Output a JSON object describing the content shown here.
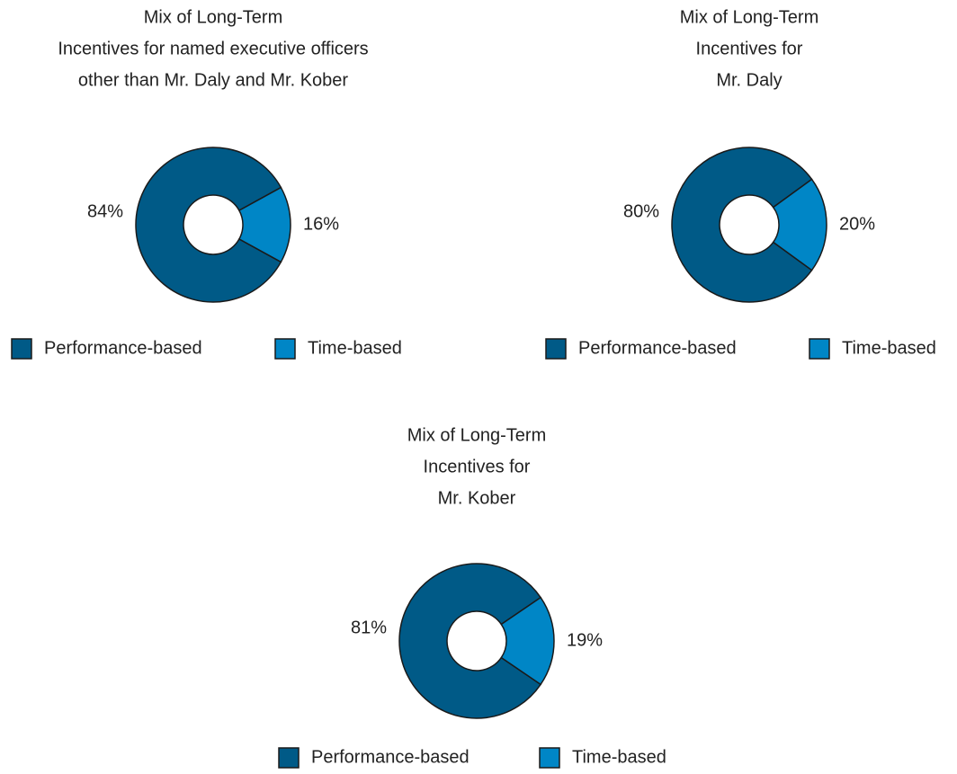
{
  "chart_data": [
    {
      "type": "donut",
      "title": [
        "Mix of Long-Term",
        "Incentives for named executive officers",
        "other than Mr. Daly and Mr. Kober"
      ],
      "categories": [
        "Performance-based",
        "Time-based"
      ],
      "values": [
        84,
        16
      ],
      "value_labels": [
        "84%",
        "16%"
      ],
      "colors": [
        "#005a87",
        "#0086c6"
      ]
    },
    {
      "type": "donut",
      "title": [
        "Mix of Long-Term",
        "Incentives for",
        "Mr. Daly"
      ],
      "categories": [
        "Performance-based",
        "Time-based"
      ],
      "values": [
        80,
        20
      ],
      "value_labels": [
        "80%",
        "20%"
      ],
      "colors": [
        "#005a87",
        "#0086c6"
      ]
    },
    {
      "type": "donut",
      "title": [
        "Mix of Long-Term",
        "Incentives for",
        "Mr. Kober"
      ],
      "categories": [
        "Performance-based",
        "Time-based"
      ],
      "values": [
        81,
        19
      ],
      "value_labels": [
        "81%",
        "19%"
      ],
      "colors": [
        "#005a87",
        "#0086c6"
      ]
    }
  ]
}
